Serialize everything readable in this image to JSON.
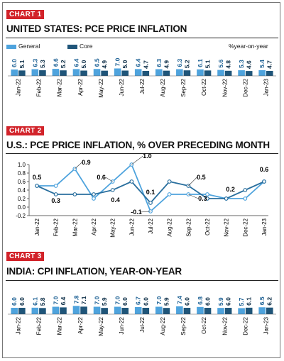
{
  "colors": {
    "general": "#4ea3dd",
    "core": "#1f5579",
    "accent": "#d2232a",
    "line1": "#4ea3dd",
    "line2": "#2a6f9e"
  },
  "chart1": {
    "tag": "CHART 1",
    "title": "UNITED STATES: PCE PRICE INFLATION"
  },
  "chart2": {
    "tag": "CHART 2",
    "title": "U.S.: PCE PRICE INFLATION,  % OVER PRECEDING MONTH"
  },
  "chart3": {
    "tag": "CHART 3",
    "title": "INDIA: CPI INFLATION, YEAR-ON-YEAR"
  },
  "legend": {
    "general": "General",
    "core": "Core",
    "unit": "%year-on-year"
  },
  "chart_data": [
    {
      "type": "bar",
      "title": "UNITED STATES: PCE PRICE INFLATION",
      "unit": "%year-on-year",
      "categories": [
        "Jan-22",
        "Feb-22",
        "Mar-22",
        "Apr-22",
        "May-22",
        "Jun-22",
        "Jul-22",
        "Aug-22",
        "Sep-22",
        "Oct-22",
        "Nov-22",
        "Dec-22",
        "Jan-23"
      ],
      "series": [
        {
          "name": "General",
          "values": [
            6.0,
            6.3,
            6.6,
            6.4,
            6.5,
            7.0,
            6.4,
            6.3,
            6.3,
            6.1,
            5.6,
            5.3,
            5.4
          ]
        },
        {
          "name": "Core",
          "values": [
            5.1,
            5.3,
            5.2,
            5.0,
            4.9,
            5.0,
            4.7,
            4.9,
            5.2,
            5.1,
            4.8,
            4.6,
            4.7
          ]
        }
      ],
      "legend_position": "top",
      "grid": false
    },
    {
      "type": "line",
      "title": "U.S.: PCE PRICE INFLATION,  % OVER PRECEDING MONTH",
      "categories": [
        "Jan-22",
        "Feb-22",
        "Mar-22",
        "Apr-22",
        "May-22",
        "Jun-22",
        "Jul-22",
        "Aug-22",
        "Sep-22",
        "Oct-22",
        "Nov-22",
        "Dec-22",
        "Jan-23"
      ],
      "series": [
        {
          "name": "",
          "values": [
            0.5,
            0.5,
            0.9,
            0.2,
            0.6,
            1.0,
            -0.1,
            0.3,
            0.3,
            0.3,
            0.2,
            0.2,
            0.6
          ]
        },
        {
          "name": "",
          "values": [
            0.5,
            0.3,
            0.3,
            0.3,
            0.4,
            0.6,
            0.1,
            0.6,
            0.5,
            0.2,
            0.2,
            0.4,
            0.6
          ]
        }
      ],
      "yticks": [
        -0.2,
        0.0,
        0.2,
        0.4,
        0.6,
        0.8,
        1.0
      ],
      "ylim": [
        -0.2,
        1.0
      ],
      "annotations": [
        "0.5",
        "0.9",
        "1.0",
        "0.3",
        "0.6",
        "0.4",
        "0.1",
        "-0.1",
        "0.5",
        "0.3",
        "0.2",
        "0.6"
      ],
      "grid": false
    },
    {
      "type": "bar",
      "title": "INDIA: CPI INFLATION, YEAR-ON-YEAR",
      "categories": [
        "Jan-22",
        "Feb-22",
        "Mar-22",
        "Apr-22",
        "May-22",
        "Jun-22",
        "Jul-22",
        "Aug-22",
        "Sep-22",
        "Oct-22",
        "Nov-22",
        "Dec-22",
        "Jan-23"
      ],
      "series": [
        {
          "name": "General",
          "values": [
            6.0,
            6.1,
            7.0,
            7.8,
            7.0,
            7.0,
            6.7,
            7.0,
            7.4,
            6.8,
            5.9,
            5.7,
            6.5
          ]
        },
        {
          "name": "Core",
          "values": [
            6.0,
            5.8,
            6.4,
            7.1,
            5.9,
            6.0,
            6.0,
            5.9,
            6.0,
            6.0,
            6.0,
            6.1,
            6.2
          ]
        }
      ],
      "grid": false
    }
  ]
}
